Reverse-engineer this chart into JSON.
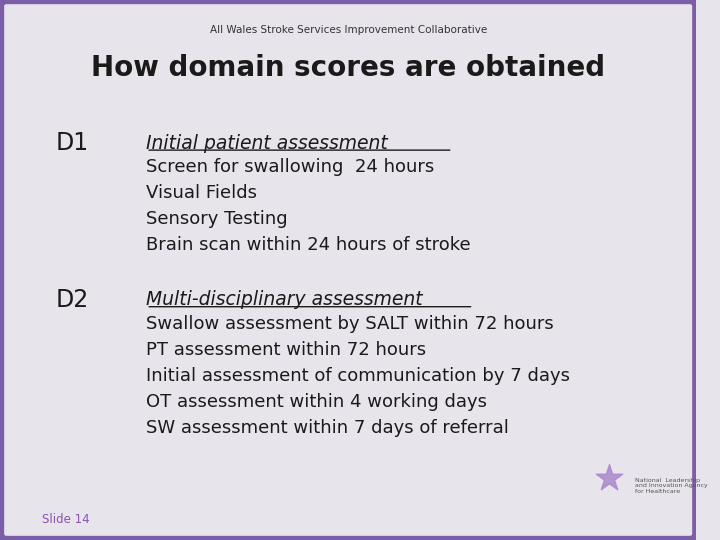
{
  "header_text": "All Wales Stroke Services Improvement Collaborative",
  "title": "How domain scores are obtained",
  "background_color": "#e8e4ec",
  "border_color": "#7b5ea7",
  "text_color": "#1a1a1a",
  "header_color": "#333333",
  "slide_label": "Slide 14",
  "d1_label": "D1",
  "d1_heading": "Initial patient assessment",
  "d1_items": [
    "Screen for swallowing  24 hours",
    "Visual Fields",
    "Sensory Testing",
    "Brain scan within 24 hours of stroke"
  ],
  "d2_label": "D2",
  "d2_heading": "Multi-disciplinary assessment",
  "d2_items": [
    "Swallow assessment by SALT within 72 hours",
    "PT assessment within 72 hours",
    "Initial assessment of communication by 7 days",
    "OT assessment within 4 working days",
    "SW assessment within 7 days of referral"
  ]
}
